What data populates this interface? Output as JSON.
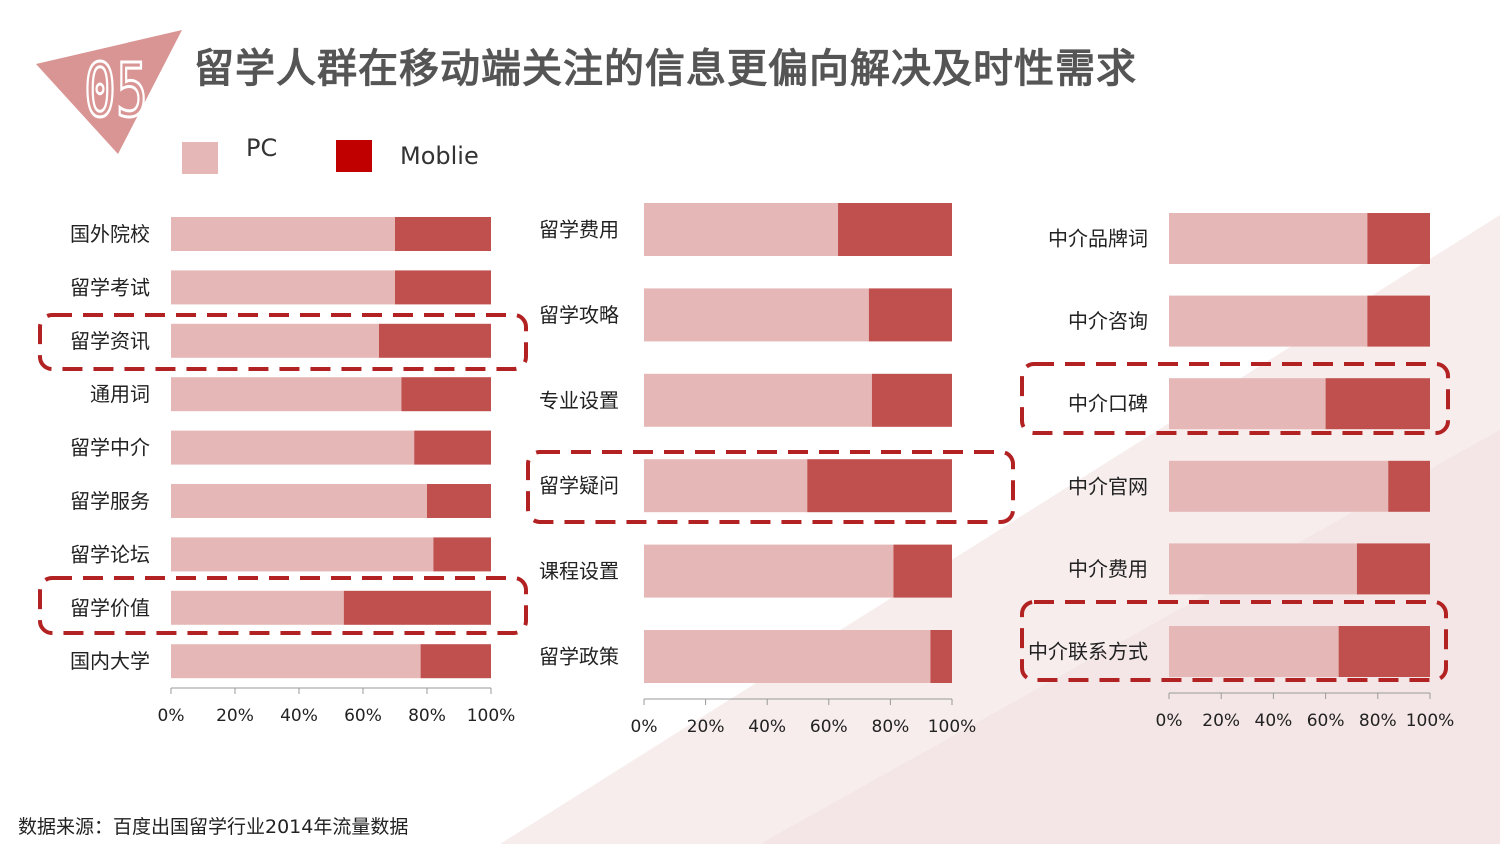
{
  "section_number": "05",
  "title": "留学人群在移动端关注的信息更偏向解决及时性需求",
  "legend": [
    {
      "label": "PC",
      "color": "#e6b7b7"
    },
    {
      "label": "Moblie",
      "color": "#c00000"
    }
  ],
  "colors": {
    "pc": "#e5b8b7",
    "mobile": "#c0504d",
    "highlight": "#b22222",
    "badge": "#d99594",
    "badge_text": "#ffffff"
  },
  "chart_data": [
    {
      "type": "bar",
      "stacked": true,
      "orientation": "horizontal",
      "categories": [
        "国外院校",
        "留学考试",
        "留学资讯",
        "通用词",
        "留学中介",
        "留学服务",
        "留学论坛",
        "留学价值",
        "国内大学"
      ],
      "series": [
        {
          "name": "PC",
          "values": [
            70,
            70,
            65,
            72,
            76,
            80,
            82,
            54,
            78
          ]
        },
        {
          "name": "Moblie",
          "values": [
            30,
            30,
            35,
            28,
            24,
            20,
            18,
            46,
            22
          ]
        }
      ],
      "xlim": [
        0,
        100
      ],
      "tick_labels": [
        "0%",
        "20%",
        "40%",
        "60%",
        "80%",
        "100%"
      ],
      "highlighted": [
        "留学资讯",
        "留学价值"
      ]
    },
    {
      "type": "bar",
      "stacked": true,
      "orientation": "horizontal",
      "categories": [
        "留学费用",
        "留学攻略",
        "专业设置",
        "留学疑问",
        "课程设置",
        "留学政策"
      ],
      "series": [
        {
          "name": "PC",
          "values": [
            63,
            73,
            74,
            53,
            81,
            93
          ]
        },
        {
          "name": "Moblie",
          "values": [
            37,
            27,
            26,
            47,
            19,
            7
          ]
        }
      ],
      "xlim": [
        0,
        100
      ],
      "tick_labels": [
        "0%",
        "20%",
        "40%",
        "60%",
        "80%",
        "100%"
      ],
      "highlighted": [
        "留学疑问"
      ]
    },
    {
      "type": "bar",
      "stacked": true,
      "orientation": "horizontal",
      "categories": [
        "中介品牌词",
        "中介咨询",
        "中介口碑",
        "中介官网",
        "中介费用",
        "中介联系方式"
      ],
      "series": [
        {
          "name": "PC",
          "values": [
            76,
            76,
            60,
            84,
            72,
            65
          ]
        },
        {
          "name": "Moblie",
          "values": [
            24,
            24,
            40,
            16,
            28,
            35
          ]
        }
      ],
      "xlim": [
        0,
        100
      ],
      "tick_labels": [
        "0%",
        "20%",
        "40%",
        "60%",
        "80%",
        "100%"
      ],
      "highlighted": [
        "中介口碑",
        "中介联系方式"
      ]
    }
  ],
  "footer": "数据来源：百度出国留学行业2014年流量数据"
}
